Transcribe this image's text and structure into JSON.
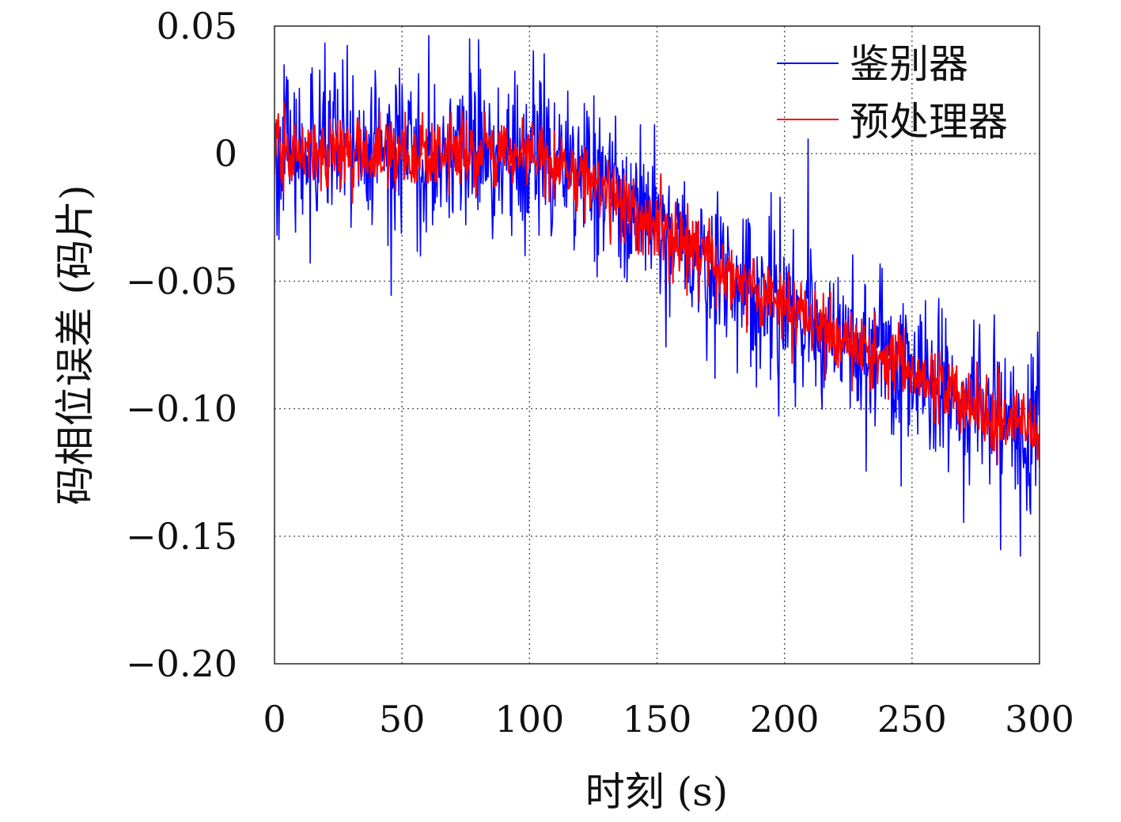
{
  "chart_data": {
    "type": "line",
    "title": "",
    "xlabel": "时刻 (s)",
    "ylabel": "码相位误差 (码片)",
    "xlim": [
      0,
      300
    ],
    "ylim": [
      -0.2,
      0.05
    ],
    "x_ticks": [
      0,
      50,
      100,
      150,
      200,
      250,
      300
    ],
    "x_tick_labels": [
      "0",
      "50",
      "100",
      "150",
      "200",
      "250",
      "300"
    ],
    "y_ticks": [
      0.05,
      0,
      -0.05,
      -0.1,
      -0.15,
      -0.2
    ],
    "y_tick_labels": [
      "0.05",
      "0",
      "−0.05",
      "−0.10",
      "−0.15",
      "−0.20"
    ],
    "grid": true,
    "legend_position": "top-right",
    "series": [
      {
        "name": "鉴别器",
        "color": "#0000ff",
        "sampling": "noisy trend, approx. 1 sample per 0.25 s",
        "x": [
          0,
          25,
          50,
          75,
          100,
          125,
          150,
          175,
          200,
          225,
          250,
          275,
          300
        ],
        "trend": [
          0.0,
          0.0,
          0.0,
          0.0,
          0.0,
          -0.01,
          -0.03,
          -0.045,
          -0.06,
          -0.075,
          -0.085,
          -0.1,
          -0.11
        ],
        "noise_amplitude": 0.015
      },
      {
        "name": "预处理器",
        "color": "#ff0000",
        "sampling": "noisy trend, approx. 1 sample per 0.25 s",
        "x": [
          0,
          25,
          50,
          75,
          100,
          125,
          150,
          175,
          200,
          225,
          250,
          275,
          300
        ],
        "trend": [
          0.0,
          0.0,
          0.0,
          0.0,
          0.0,
          -0.01,
          -0.03,
          -0.045,
          -0.06,
          -0.075,
          -0.085,
          -0.1,
          -0.11
        ],
        "noise_amplitude": 0.007
      }
    ]
  }
}
